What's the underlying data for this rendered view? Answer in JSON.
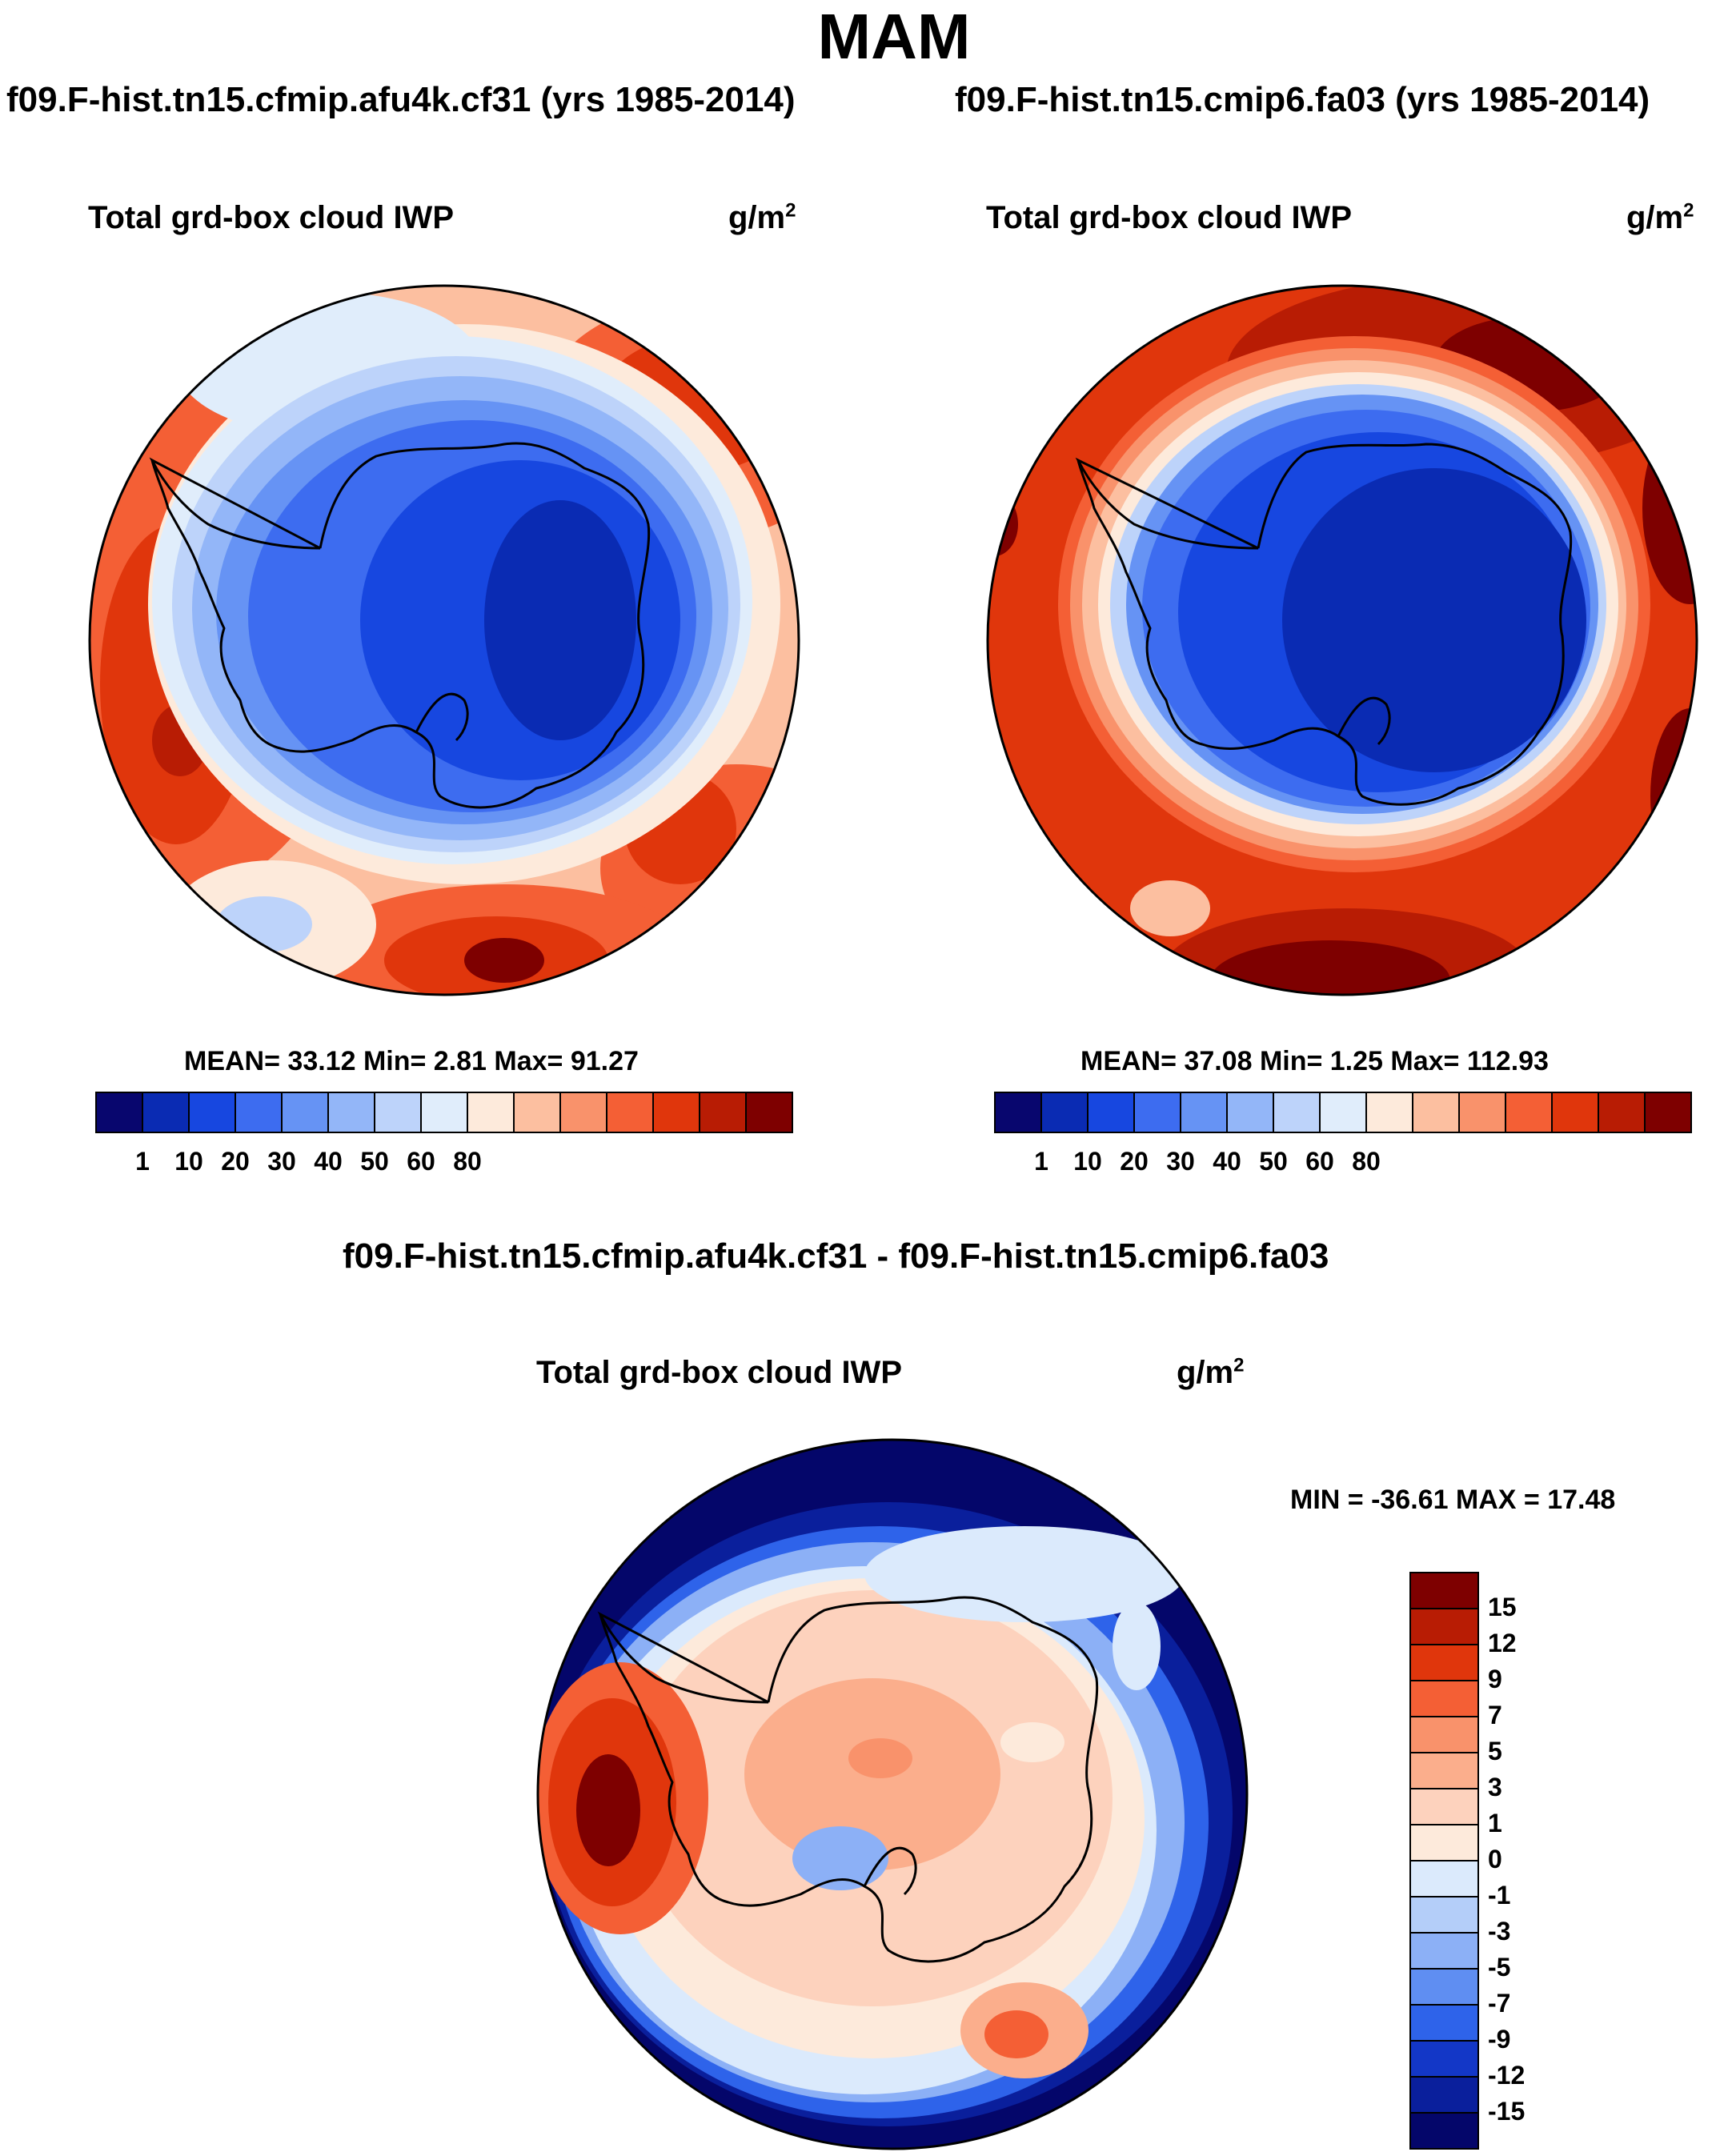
{
  "season_title": "MAM",
  "panels": [
    {
      "case_title": "f09.F-hist.tn15.cfmip.afu4k.cf31 (yrs 1985-2014)",
      "variable": "Total grd-box cloud IWP",
      "units_base": "g/m",
      "units_exp": "2",
      "stats_text": "MEAN=  33.12  Min=   2.81  Max=  91.27",
      "colorbar_labels": [
        "1",
        "10",
        "20",
        "30",
        "40",
        "50",
        "60",
        "80"
      ]
    },
    {
      "case_title": "f09.F-hist.tn15.cmip6.fa03 (yrs 1985-2014)",
      "variable": "Total grd-box cloud IWP",
      "units_base": "g/m",
      "units_exp": "2",
      "stats_text": "MEAN=  37.08  Min=   1.25  Max= 112.93",
      "colorbar_labels": [
        "1",
        "10",
        "20",
        "30",
        "40",
        "50",
        "60",
        "80"
      ]
    }
  ],
  "diff_panel": {
    "case_title": "f09.F-hist.tn15.cfmip.afu4k.cf31 - f09.F-hist.tn15.cmip6.fa03",
    "variable": "Total grd-box cloud IWP",
    "units_base": "g/m",
    "units_exp": "2",
    "stats_text": "MIN = -36.61 MAX =  17.48",
    "colorbar_labels": [
      "15",
      "12",
      "9",
      "7",
      "5",
      "3",
      "1",
      "0",
      "-1",
      "-3",
      "-5",
      "-7",
      "-9",
      "-12",
      "-15"
    ]
  },
  "colors": {
    "seq_palette": [
      "#08066e",
      "#0a2bb3",
      "#1747e0",
      "#3d6cf0",
      "#6693f4",
      "#93b6f8",
      "#bdd3fa",
      "#e0edfb",
      "#fdeadb",
      "#fcbfa0",
      "#f9926b",
      "#f45f35",
      "#e0360c",
      "#b81c04",
      "#7e0000"
    ],
    "diff_palette_top_to_bottom": [
      "#7e0000",
      "#b81c04",
      "#e0360c",
      "#f45f35",
      "#f9926b",
      "#fbae8c",
      "#fdd2bd",
      "#fdeadb",
      "#dbeafc",
      "#b4cef9",
      "#8cb0f6",
      "#5f8ef2",
      "#2e63ea",
      "#1337c7",
      "#0a1f9c",
      "#04066a"
    ],
    "coastline": "#000000"
  }
}
